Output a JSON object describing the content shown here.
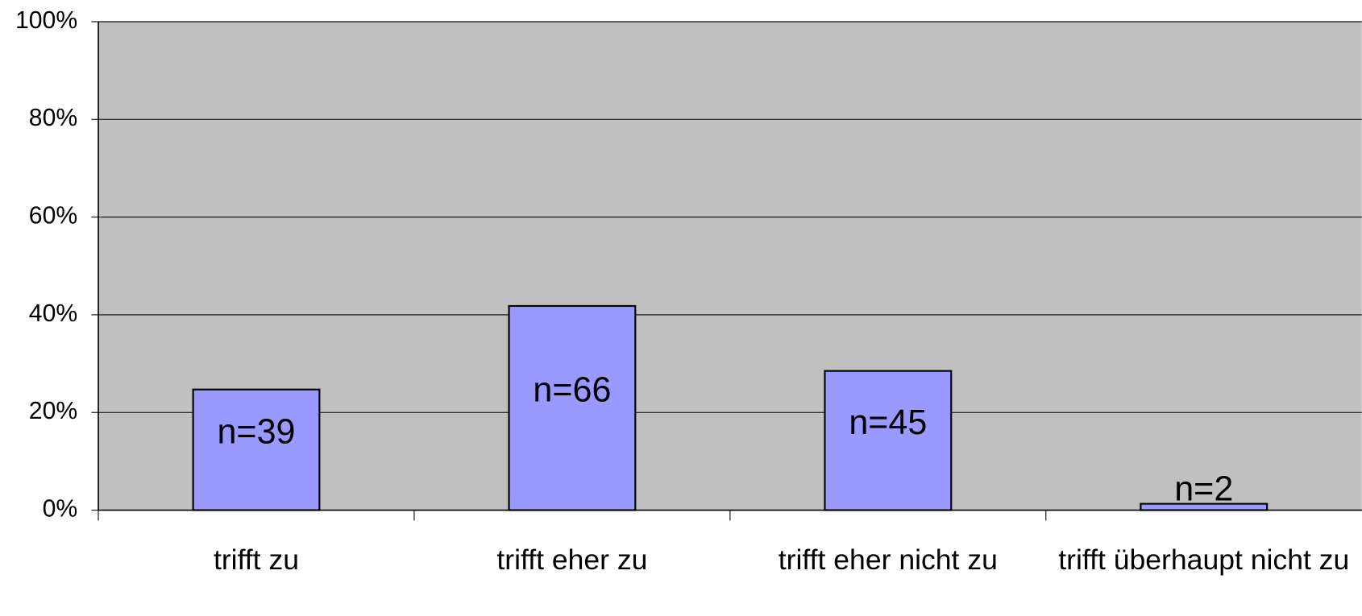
{
  "chart_data": {
    "type": "bar",
    "categories": [
      "trifft zu",
      "trifft eher zu",
      "trifft eher nicht zu",
      "trifft überhaupt nicht zu"
    ],
    "values": [
      24.7,
      41.8,
      28.5,
      1.3
    ],
    "labels": [
      "n=39",
      "n=66",
      "n=45",
      "n=2"
    ],
    "color": "#9999ff",
    "ylim": [
      0,
      100
    ],
    "yticks": [
      {
        "value": 0,
        "label": "0%"
      },
      {
        "value": 20,
        "label": "20%"
      },
      {
        "value": 40,
        "label": "40%"
      },
      {
        "value": 60,
        "label": "60%"
      },
      {
        "value": 80,
        "label": "80%"
      },
      {
        "value": 100,
        "label": "100%"
      }
    ],
    "grid": true
  }
}
